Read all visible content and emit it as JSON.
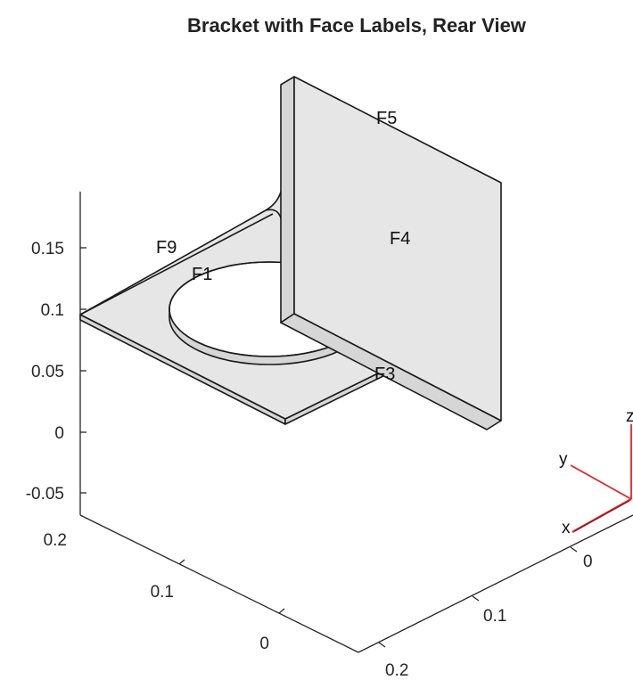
{
  "title": "Bracket with Face Labels, Rear View",
  "z_axis": {
    "ticks": [
      "0.15",
      "0.1",
      "0.05",
      "0",
      "-0.05"
    ]
  },
  "left_axis": {
    "ticks": [
      "0.2",
      "0.1",
      "0"
    ]
  },
  "bottom_axis": {
    "ticks": [
      "0",
      "0.1",
      "0.2"
    ]
  },
  "face_labels": [
    "F5",
    "F4",
    "F9",
    "F1",
    "F3"
  ],
  "triad": {
    "x": "x",
    "y": "y",
    "z": "z"
  },
  "colors": {
    "face": "#e6e6e6",
    "edge": "#1a1a1a",
    "triad": "#e0262a"
  }
}
